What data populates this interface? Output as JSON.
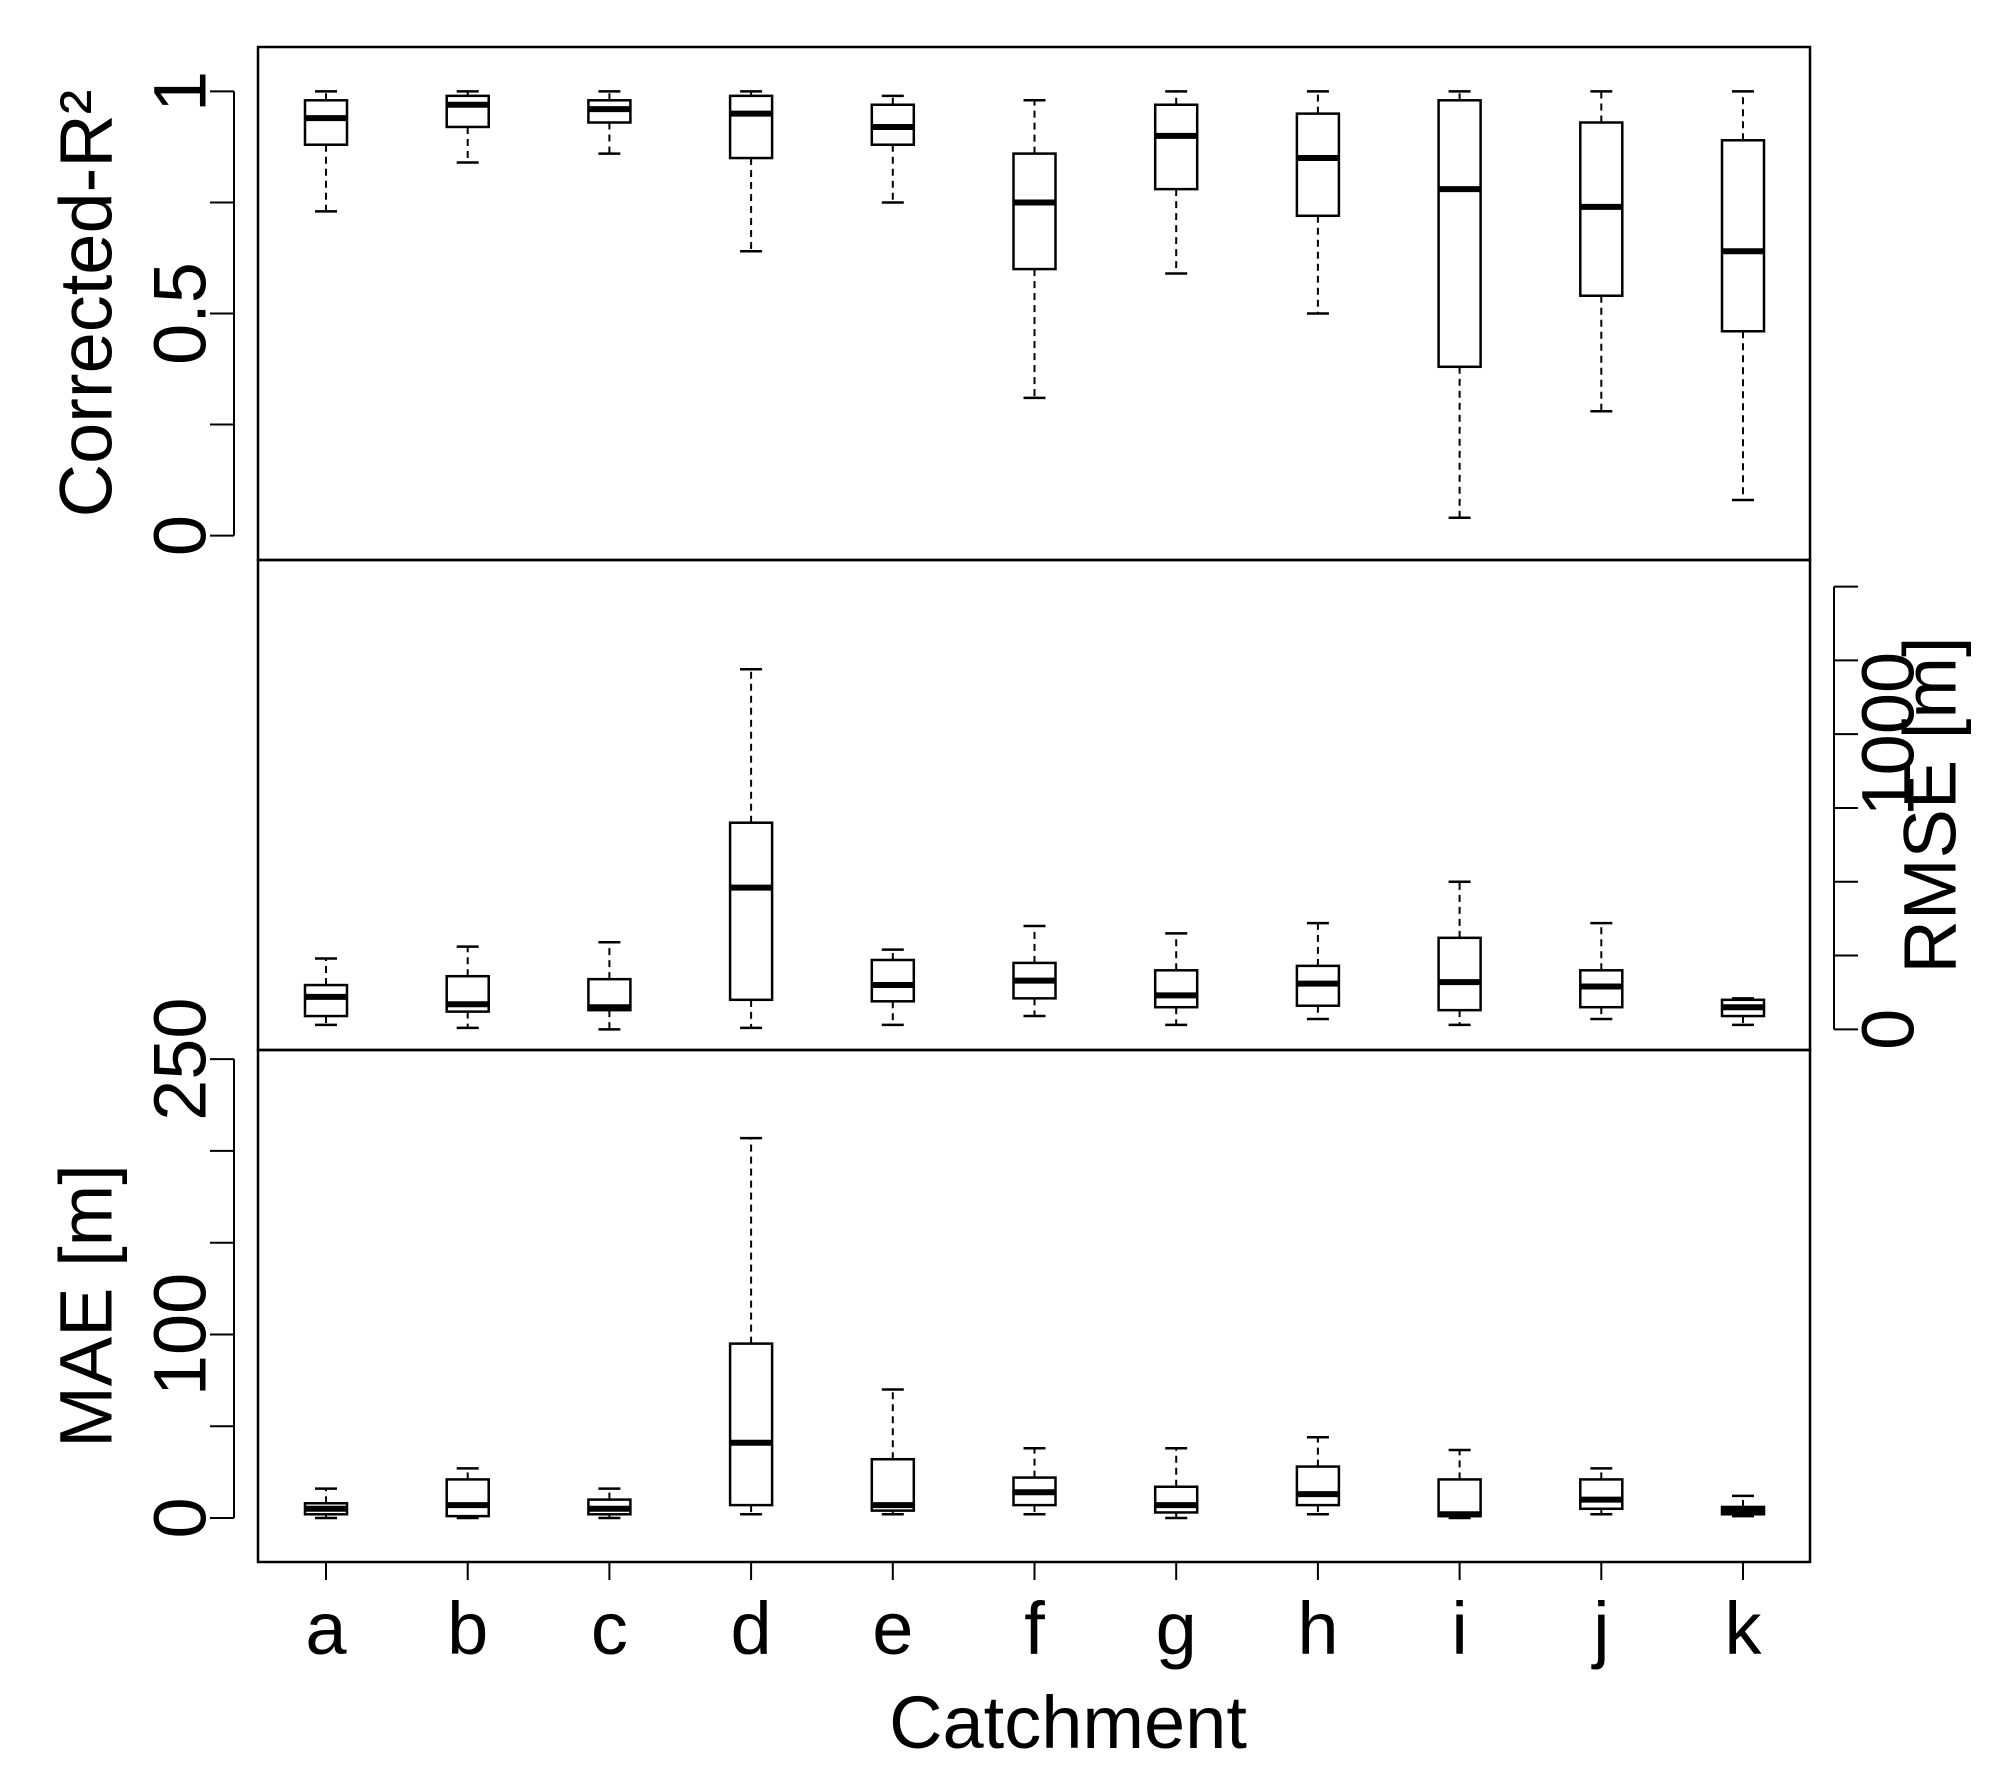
{
  "chart_data": {
    "type": "boxplot",
    "xlabel": "Catchment",
    "categories": [
      "a",
      "b",
      "c",
      "d",
      "e",
      "f",
      "g",
      "h",
      "i",
      "j",
      "k"
    ],
    "panels": [
      {
        "id": "r2",
        "ylabel": "Corrected-R²",
        "ylabel_side": "left",
        "ylim": [
          -0.055,
          1.1
        ],
        "tick_values": [
          0,
          0.25,
          0.5,
          0.75,
          1
        ],
        "tick_labels": [
          {
            "value": 0,
            "label": "0"
          },
          {
            "value": 0.5,
            "label": "0.5"
          },
          {
            "value": 1,
            "label": "1"
          }
        ],
        "boxes": [
          {
            "category": "a",
            "min": 0.73,
            "q1": 0.88,
            "median": 0.94,
            "q3": 0.98,
            "max": 1.0
          },
          {
            "category": "b",
            "min": 0.84,
            "q1": 0.92,
            "median": 0.97,
            "q3": 0.99,
            "max": 1.0
          },
          {
            "category": "c",
            "min": 0.86,
            "q1": 0.93,
            "median": 0.96,
            "q3": 0.98,
            "max": 1.0
          },
          {
            "category": "d",
            "min": 0.64,
            "q1": 0.85,
            "median": 0.95,
            "q3": 0.99,
            "max": 1.0
          },
          {
            "category": "e",
            "min": 0.75,
            "q1": 0.88,
            "median": 0.92,
            "q3": 0.97,
            "max": 0.99
          },
          {
            "category": "f",
            "min": 0.31,
            "q1": 0.6,
            "median": 0.75,
            "q3": 0.86,
            "max": 0.98
          },
          {
            "category": "g",
            "min": 0.59,
            "q1": 0.78,
            "median": 0.9,
            "q3": 0.97,
            "max": 1.0
          },
          {
            "category": "h",
            "min": 0.5,
            "q1": 0.72,
            "median": 0.85,
            "q3": 0.95,
            "max": 1.0
          },
          {
            "category": "i",
            "min": 0.04,
            "q1": 0.38,
            "median": 0.78,
            "q3": 0.98,
            "max": 1.0
          },
          {
            "category": "j",
            "min": 0.28,
            "q1": 0.54,
            "median": 0.74,
            "q3": 0.93,
            "max": 1.0
          },
          {
            "category": "k",
            "min": 0.08,
            "q1": 0.46,
            "median": 0.64,
            "q3": 0.89,
            "max": 1.0
          }
        ]
      },
      {
        "id": "rmse",
        "ylabel": "RMSE [m]",
        "ylabel_side": "right",
        "ylim": [
          -70,
          1590
        ],
        "tick_values": [
          0,
          250,
          500,
          750,
          1000,
          1250,
          1500
        ],
        "tick_labels": [
          {
            "value": 0,
            "label": "0"
          },
          {
            "value": 1000,
            "label": "1000"
          }
        ],
        "boxes": [
          {
            "category": "a",
            "min": 15,
            "q1": 45,
            "median": 110,
            "q3": 150,
            "max": 240
          },
          {
            "category": "b",
            "min": 5,
            "q1": 60,
            "median": 85,
            "q3": 180,
            "max": 280
          },
          {
            "category": "c",
            "min": 0,
            "q1": 65,
            "median": 75,
            "q3": 170,
            "max": 295
          },
          {
            "category": "d",
            "min": 5,
            "q1": 100,
            "median": 480,
            "q3": 700,
            "max": 1220
          },
          {
            "category": "e",
            "min": 15,
            "q1": 95,
            "median": 150,
            "q3": 235,
            "max": 270
          },
          {
            "category": "f",
            "min": 45,
            "q1": 105,
            "median": 165,
            "q3": 225,
            "max": 350
          },
          {
            "category": "g",
            "min": 15,
            "q1": 75,
            "median": 115,
            "q3": 200,
            "max": 325
          },
          {
            "category": "h",
            "min": 35,
            "q1": 80,
            "median": 155,
            "q3": 215,
            "max": 360
          },
          {
            "category": "i",
            "min": 15,
            "q1": 65,
            "median": 160,
            "q3": 310,
            "max": 500
          },
          {
            "category": "j",
            "min": 35,
            "q1": 75,
            "median": 145,
            "q3": 200,
            "max": 360
          },
          {
            "category": "k",
            "min": 15,
            "q1": 45,
            "median": 75,
            "q3": 100,
            "max": 105
          }
        ]
      },
      {
        "id": "mae",
        "ylabel": "MAE [m]",
        "ylabel_side": "left",
        "ylim": [
          -24,
          255
        ],
        "tick_values": [
          0,
          50,
          100,
          150,
          200,
          250
        ],
        "tick_labels": [
          {
            "value": 0,
            "label": "0"
          },
          {
            "value": 100,
            "label": "100"
          },
          {
            "value": 250,
            "label": "250"
          }
        ],
        "boxes": [
          {
            "category": "a",
            "min": 0,
            "q1": 2,
            "median": 5,
            "q3": 8,
            "max": 16
          },
          {
            "category": "b",
            "min": 0,
            "q1": 1,
            "median": 7,
            "q3": 21,
            "max": 27
          },
          {
            "category": "c",
            "min": 0,
            "q1": 2,
            "median": 5,
            "q3": 10,
            "max": 16
          },
          {
            "category": "d",
            "min": 2,
            "q1": 7,
            "median": 41,
            "q3": 95,
            "max": 207
          },
          {
            "category": "e",
            "min": 2,
            "q1": 4,
            "median": 7,
            "q3": 32,
            "max": 70
          },
          {
            "category": "f",
            "min": 2,
            "q1": 7,
            "median": 14,
            "q3": 22,
            "max": 38
          },
          {
            "category": "g",
            "min": 0,
            "q1": 3,
            "median": 7,
            "q3": 17,
            "max": 38
          },
          {
            "category": "h",
            "min": 2,
            "q1": 7,
            "median": 13,
            "q3": 28,
            "max": 44
          },
          {
            "category": "i",
            "min": 0,
            "q1": 1,
            "median": 2,
            "q3": 21,
            "max": 37
          },
          {
            "category": "j",
            "min": 2,
            "q1": 5,
            "median": 10,
            "q3": 21,
            "max": 27
          },
          {
            "category": "k",
            "min": 1,
            "q1": 2,
            "median": 4,
            "q3": 6,
            "max": 12
          }
        ]
      }
    ]
  }
}
